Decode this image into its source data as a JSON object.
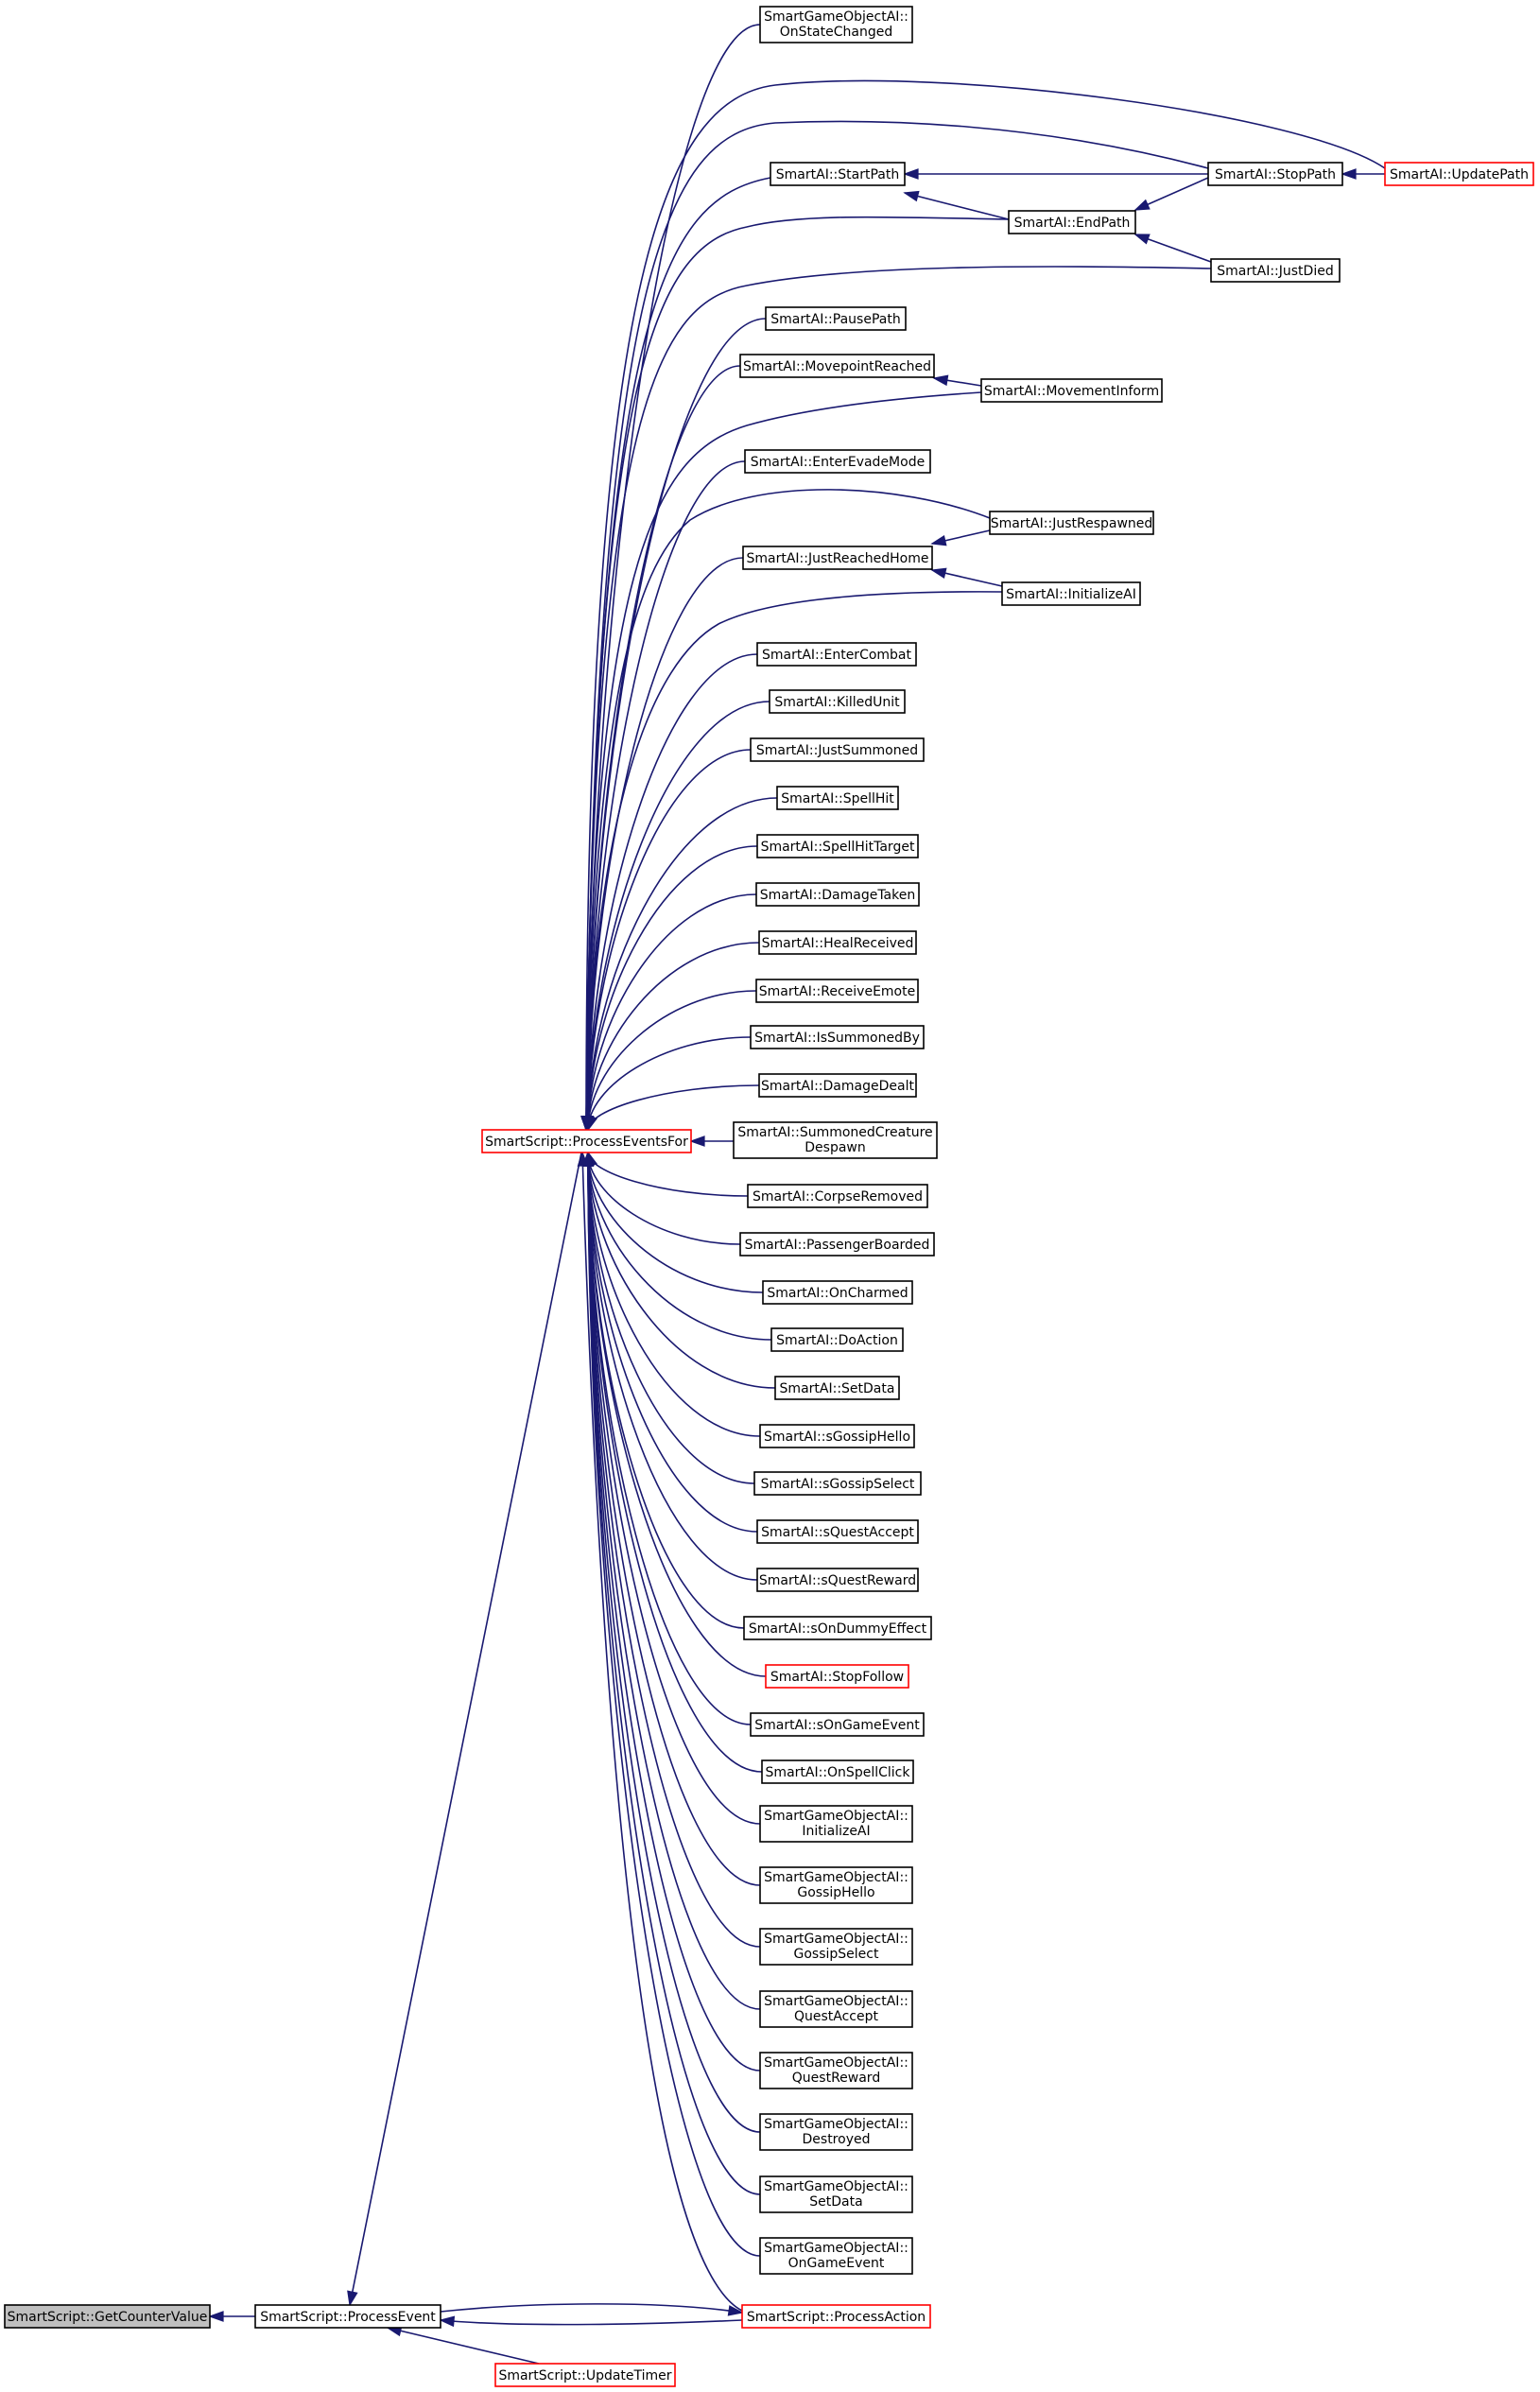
{
  "graph": {
    "nodes": [
      {
        "id": "getcounter",
        "lines": [
          "SmartScript::GetCounterValue"
        ],
        "style": "gray"
      },
      {
        "id": "processevent",
        "lines": [
          "SmartScript::ProcessEvent"
        ],
        "style": "black"
      },
      {
        "id": "updatetimer",
        "lines": [
          "SmartScript::UpdateTimer"
        ],
        "style": "red"
      },
      {
        "id": "processaction",
        "lines": [
          "SmartScript::ProcessAction"
        ],
        "style": "red"
      },
      {
        "id": "pef",
        "lines": [
          "SmartScript::ProcessEventsFor"
        ],
        "style": "red"
      },
      {
        "id": "go_statechanged",
        "lines": [
          "SmartGameObjectAI::",
          "OnStateChanged"
        ],
        "style": "black"
      },
      {
        "id": "startpath",
        "lines": [
          "SmartAI::StartPath"
        ],
        "style": "black"
      },
      {
        "id": "endpath",
        "lines": [
          "SmartAI::EndPath"
        ],
        "style": "black"
      },
      {
        "id": "stoppath",
        "lines": [
          "SmartAI::StopPath"
        ],
        "style": "black"
      },
      {
        "id": "updatepath",
        "lines": [
          "SmartAI::UpdatePath"
        ],
        "style": "red"
      },
      {
        "id": "justdied",
        "lines": [
          "SmartAI::JustDied"
        ],
        "style": "black"
      },
      {
        "id": "pausepath",
        "lines": [
          "SmartAI::PausePath"
        ],
        "style": "black"
      },
      {
        "id": "movepointreached",
        "lines": [
          "SmartAI::MovepointReached"
        ],
        "style": "black"
      },
      {
        "id": "movementinform",
        "lines": [
          "SmartAI::MovementInform"
        ],
        "style": "black"
      },
      {
        "id": "enterevademode",
        "lines": [
          "SmartAI::EnterEvadeMode"
        ],
        "style": "black"
      },
      {
        "id": "justreachedhome",
        "lines": [
          "SmartAI::JustReachedHome"
        ],
        "style": "black"
      },
      {
        "id": "justrespawned",
        "lines": [
          "SmartAI::JustRespawned"
        ],
        "style": "black"
      },
      {
        "id": "initializeai",
        "lines": [
          "SmartAI::InitializeAI"
        ],
        "style": "black"
      },
      {
        "id": "entercombat",
        "lines": [
          "SmartAI::EnterCombat"
        ],
        "style": "black"
      },
      {
        "id": "killedunit",
        "lines": [
          "SmartAI::KilledUnit"
        ],
        "style": "black"
      },
      {
        "id": "justsummoned",
        "lines": [
          "SmartAI::JustSummoned"
        ],
        "style": "black"
      },
      {
        "id": "spellhit",
        "lines": [
          "SmartAI::SpellHit"
        ],
        "style": "black"
      },
      {
        "id": "spellhittarget",
        "lines": [
          "SmartAI::SpellHitTarget"
        ],
        "style": "black"
      },
      {
        "id": "damagetaken",
        "lines": [
          "SmartAI::DamageTaken"
        ],
        "style": "black"
      },
      {
        "id": "healreceived",
        "lines": [
          "SmartAI::HealReceived"
        ],
        "style": "black"
      },
      {
        "id": "receiveemote",
        "lines": [
          "SmartAI::ReceiveEmote"
        ],
        "style": "black"
      },
      {
        "id": "issummonedby",
        "lines": [
          "SmartAI::IsSummonedBy"
        ],
        "style": "black"
      },
      {
        "id": "damagedealt",
        "lines": [
          "SmartAI::DamageDealt"
        ],
        "style": "black"
      },
      {
        "id": "summonedcreaturedespawn",
        "lines": [
          "SmartAI::SummonedCreature",
          "Despawn"
        ],
        "style": "black"
      },
      {
        "id": "corpseremoved",
        "lines": [
          "SmartAI::CorpseRemoved"
        ],
        "style": "black"
      },
      {
        "id": "passengerboarded",
        "lines": [
          "SmartAI::PassengerBoarded"
        ],
        "style": "black"
      },
      {
        "id": "oncharmed",
        "lines": [
          "SmartAI::OnCharmed"
        ],
        "style": "black"
      },
      {
        "id": "doaction",
        "lines": [
          "SmartAI::DoAction"
        ],
        "style": "black"
      },
      {
        "id": "setdata",
        "lines": [
          "SmartAI::SetData"
        ],
        "style": "black"
      },
      {
        "id": "sgossiphello",
        "lines": [
          "SmartAI::sGossipHello"
        ],
        "style": "black"
      },
      {
        "id": "sgossipselect",
        "lines": [
          "SmartAI::sGossipSelect"
        ],
        "style": "black"
      },
      {
        "id": "squestaccept",
        "lines": [
          "SmartAI::sQuestAccept"
        ],
        "style": "black"
      },
      {
        "id": "squestreward",
        "lines": [
          "SmartAI::sQuestReward"
        ],
        "style": "black"
      },
      {
        "id": "sondummyeffect",
        "lines": [
          "SmartAI::sOnDummyEffect"
        ],
        "style": "black"
      },
      {
        "id": "stopfollow",
        "lines": [
          "SmartAI::StopFollow"
        ],
        "style": "red"
      },
      {
        "id": "songameevent",
        "lines": [
          "SmartAI::sOnGameEvent"
        ],
        "style": "black"
      },
      {
        "id": "onspellclick",
        "lines": [
          "SmartAI::OnSpellClick"
        ],
        "style": "black"
      },
      {
        "id": "go_initializeai",
        "lines": [
          "SmartGameObjectAI::",
          "InitializeAI"
        ],
        "style": "black"
      },
      {
        "id": "go_gossiphello",
        "lines": [
          "SmartGameObjectAI::",
          "GossipHello"
        ],
        "style": "black"
      },
      {
        "id": "go_gossipselect",
        "lines": [
          "SmartGameObjectAI::",
          "GossipSelect"
        ],
        "style": "black"
      },
      {
        "id": "go_questaccept",
        "lines": [
          "SmartGameObjectAI::",
          "QuestAccept"
        ],
        "style": "black"
      },
      {
        "id": "go_questreward",
        "lines": [
          "SmartGameObjectAI::",
          "QuestReward"
        ],
        "style": "black"
      },
      {
        "id": "go_destroyed",
        "lines": [
          "SmartGameObjectAI::",
          "Destroyed"
        ],
        "style": "black"
      },
      {
        "id": "go_setdata",
        "lines": [
          "SmartGameObjectAI::",
          "SetData"
        ],
        "style": "black"
      },
      {
        "id": "go_ongameevent",
        "lines": [
          "SmartGameObjectAI::",
          "OnGameEvent"
        ],
        "style": "black"
      }
    ],
    "edges": [
      {
        "from": "processevent",
        "to": "getcounter"
      },
      {
        "from": "updatetimer",
        "to": "processevent"
      },
      {
        "from": "processaction",
        "to": "processevent"
      },
      {
        "from": "processevent",
        "to": "processaction"
      },
      {
        "from": "pef",
        "to": "processevent"
      },
      {
        "from": "stoppath",
        "to": "startpath"
      },
      {
        "from": "endpath",
        "to": "startpath"
      },
      {
        "from": "stoppath",
        "to": "endpath"
      },
      {
        "from": "updatepath",
        "to": "stoppath"
      },
      {
        "from": "justdied",
        "to": "endpath"
      },
      {
        "from": "movementinform",
        "to": "movepointreached"
      },
      {
        "from": "justrespawned",
        "to": "justreachedhome"
      },
      {
        "from": "initializeai",
        "to": "justreachedhome"
      },
      {
        "from": "summonedcreaturedespawn",
        "to": "pef"
      },
      {
        "from": "go_statechanged",
        "to": "pef"
      },
      {
        "from": "updatepath",
        "to": "pef"
      },
      {
        "from": "stoppath",
        "to": "pef"
      },
      {
        "from": "startpath",
        "to": "pef"
      },
      {
        "from": "endpath",
        "to": "pef"
      },
      {
        "from": "justdied",
        "to": "pef"
      },
      {
        "from": "pausepath",
        "to": "pef"
      },
      {
        "from": "movepointreached",
        "to": "pef"
      },
      {
        "from": "movementinform",
        "to": "pef"
      },
      {
        "from": "enterevademode",
        "to": "pef"
      },
      {
        "from": "justrespawned",
        "to": "pef"
      },
      {
        "from": "justreachedhome",
        "to": "pef"
      },
      {
        "from": "initializeai",
        "to": "pef"
      },
      {
        "from": "entercombat",
        "to": "pef"
      },
      {
        "from": "killedunit",
        "to": "pef"
      },
      {
        "from": "justsummoned",
        "to": "pef"
      },
      {
        "from": "spellhit",
        "to": "pef"
      },
      {
        "from": "spellhittarget",
        "to": "pef"
      },
      {
        "from": "damagetaken",
        "to": "pef"
      },
      {
        "from": "healreceived",
        "to": "pef"
      },
      {
        "from": "receiveemote",
        "to": "pef"
      },
      {
        "from": "issummonedby",
        "to": "pef"
      },
      {
        "from": "damagedealt",
        "to": "pef"
      },
      {
        "from": "corpseremoved",
        "to": "pef"
      },
      {
        "from": "passengerboarded",
        "to": "pef"
      },
      {
        "from": "oncharmed",
        "to": "pef"
      },
      {
        "from": "doaction",
        "to": "pef"
      },
      {
        "from": "setdata",
        "to": "pef"
      },
      {
        "from": "sgossiphello",
        "to": "pef"
      },
      {
        "from": "sgossipselect",
        "to": "pef"
      },
      {
        "from": "squestaccept",
        "to": "pef"
      },
      {
        "from": "squestreward",
        "to": "pef"
      },
      {
        "from": "sondummyeffect",
        "to": "pef"
      },
      {
        "from": "stopfollow",
        "to": "pef"
      },
      {
        "from": "songameevent",
        "to": "pef"
      },
      {
        "from": "onspellclick",
        "to": "pef"
      },
      {
        "from": "go_initializeai",
        "to": "pef"
      },
      {
        "from": "go_gossiphello",
        "to": "pef"
      },
      {
        "from": "go_gossipselect",
        "to": "pef"
      },
      {
        "from": "go_questaccept",
        "to": "pef"
      },
      {
        "from": "go_questreward",
        "to": "pef"
      },
      {
        "from": "go_destroyed",
        "to": "pef"
      },
      {
        "from": "go_setdata",
        "to": "pef"
      },
      {
        "from": "go_ongameevent",
        "to": "pef"
      },
      {
        "from": "processaction",
        "to": "pef"
      }
    ],
    "colors": {
      "edge": "#191970",
      "red_border": "#ff0000",
      "black_border": "#000000",
      "gray_fill": "#bfbfbf"
    }
  }
}
